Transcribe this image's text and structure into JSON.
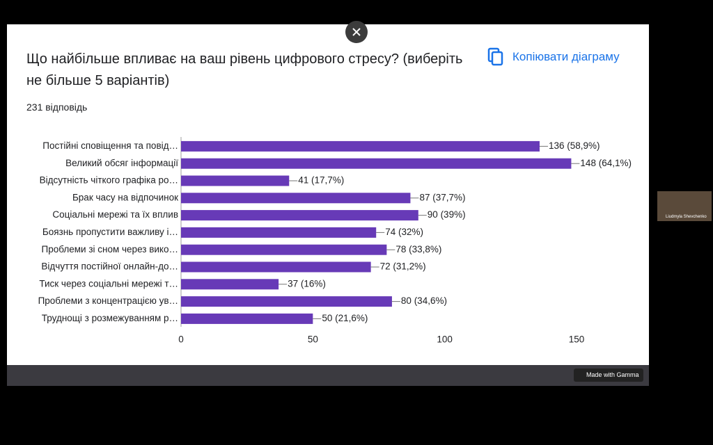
{
  "chart_data": {
    "type": "bar",
    "orientation": "horizontal",
    "title": "Що найбільше впливає на ваш рівень цифрового стресу? (виберіть не більше 5 варіантів)",
    "subtitle": "231 відповідь",
    "categories": [
      "Постійні сповіщення та повід…",
      "Великий обсяг інформації",
      "Відсутність чіткого графіка ро…",
      "Брак часу на відпочинок",
      "Соціальні мережі та їх вплив",
      "Боязнь пропустити важливу і…",
      "Проблеми зі сном через вико…",
      "Відчуття постійної онлайн-до…",
      "Тиск через соціальні мережі т…",
      "Проблеми з концентрацією ув…",
      "Труднощі з розмежуванням р…"
    ],
    "values": [
      136,
      148,
      41,
      87,
      90,
      74,
      78,
      72,
      37,
      80,
      50
    ],
    "value_labels": [
      "136 (58,9%)",
      "148 (64,1%)",
      "41 (17,7%)",
      "87 (37,7%)",
      "90 (39%)",
      "74 (32%)",
      "78 (33,8%)",
      "72 (31,2%)",
      "37 (16%)",
      "80 (34,6%)",
      "50 (21,6%)"
    ],
    "color": "#673ab7",
    "xlim": [
      0,
      150
    ],
    "xticks": [
      0,
      50,
      100,
      150
    ]
  },
  "copy_button": "Копіювати діаграму",
  "badge": "Made with Gamma",
  "participant": "Liudmyla Shevchenko"
}
